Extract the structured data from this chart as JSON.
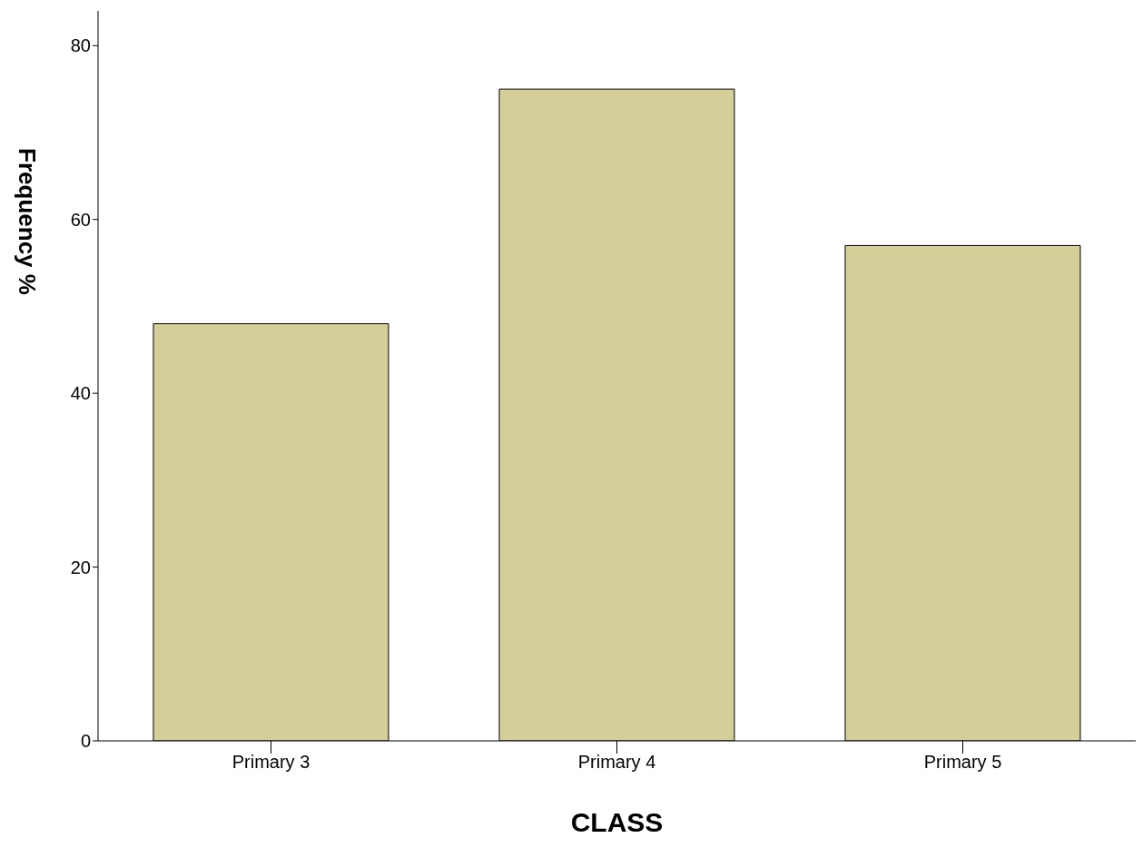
{
  "chart_data": {
    "type": "bar",
    "xlabel": "CLASS",
    "ylabel": "Frequency %",
    "categories": [
      "Primary 3",
      "Primary 4",
      "Primary 5"
    ],
    "values": [
      48,
      75,
      57
    ],
    "color": "#d4ce98",
    "ylim": [
      0,
      84
    ],
    "yticks": [
      0,
      20,
      40,
      60,
      80
    ],
    "grid": false
  }
}
